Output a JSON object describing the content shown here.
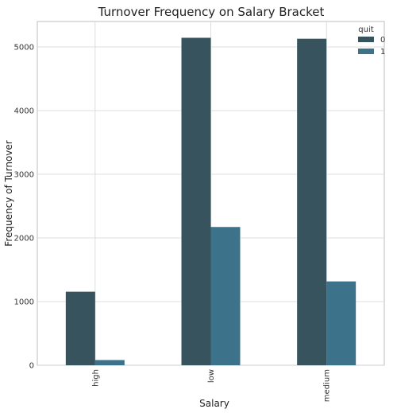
{
  "chart_data": {
    "type": "bar",
    "title": "Turnover Frequency on Salary Bracket",
    "xlabel": "Salary",
    "ylabel": "Frequency of Turnover",
    "categories": [
      "high",
      "low",
      "medium"
    ],
    "series": [
      {
        "name": "0",
        "values": [
          1155,
          5144,
          5129
        ],
        "color": "#36535e"
      },
      {
        "name": "1",
        "values": [
          82,
          2172,
          1317
        ],
        "color": "#3d738a"
      }
    ],
    "legend_title": "quit",
    "legend_position": "top-right",
    "ylim": [
      0,
      5400
    ],
    "yticks": [
      0,
      1000,
      2000,
      3000,
      4000,
      5000
    ],
    "grid": true
  }
}
